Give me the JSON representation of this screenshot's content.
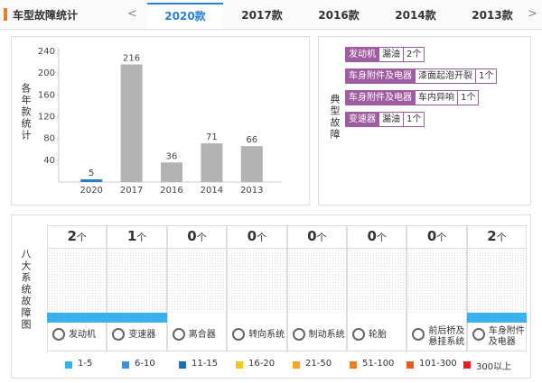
{
  "header": {
    "title": "车型故障统计",
    "prev": "<",
    "next": ">",
    "tabs": [
      "2020款",
      "2017款",
      "2016款",
      "2014款",
      "2013款"
    ],
    "active_tab": 0
  },
  "chart_data": {
    "type": "bar",
    "y_label": "各年款统计",
    "categories": [
      "2020",
      "2017",
      "2016",
      "2014",
      "2013"
    ],
    "values": [
      5,
      216,
      36,
      71,
      66
    ],
    "colors": [
      "#2a7fc0",
      "#b3b3b3",
      "#b3b3b3",
      "#b3b3b3",
      "#b3b3b3"
    ],
    "ylim": [
      0,
      240
    ],
    "yticks": [
      40,
      80,
      120,
      160,
      200,
      240
    ]
  },
  "typical_faults": {
    "label": "典型故障",
    "rows": [
      {
        "part": "发动机",
        "issue": "漏油",
        "count": "2个"
      },
      {
        "part": "车身附件及电器",
        "issue": "漆面起泡开裂",
        "count": "1个"
      },
      {
        "part": "车身附件及电器",
        "issue": "车内异响",
        "count": "1个"
      },
      {
        "part": "变速器",
        "issue": "漏油",
        "count": "1个"
      }
    ]
  },
  "systems": {
    "label": "八大系统故障图",
    "unit": "个",
    "items": [
      {
        "name": "发动机",
        "count": 2,
        "color": "#3ab0ef"
      },
      {
        "name": "变速器",
        "count": 1,
        "color": "#3ab0ef"
      },
      {
        "name": "离合器",
        "count": 0
      },
      {
        "name": "转向系统",
        "count": 0
      },
      {
        "name": "制动系统",
        "count": 0
      },
      {
        "name": "轮胎",
        "count": 0
      },
      {
        "name": "前后桥及悬挂系统",
        "count": 0
      },
      {
        "name": "车身附件及电器",
        "count": 2,
        "color": "#3ab0ef"
      }
    ]
  },
  "legend": [
    {
      "label": "1-5",
      "color": "#3ab0ef"
    },
    {
      "label": "6-10",
      "color": "#3d8ee0"
    },
    {
      "label": "11-15",
      "color": "#1a6fb5"
    },
    {
      "label": "16-20",
      "color": "#f5c518"
    },
    {
      "label": "21-50",
      "color": "#f5a623"
    },
    {
      "label": "51-100",
      "color": "#f07c1e"
    },
    {
      "label": "101-300",
      "color": "#e85a1a"
    },
    {
      "label": "300以上",
      "color": "#e8201a"
    }
  ]
}
